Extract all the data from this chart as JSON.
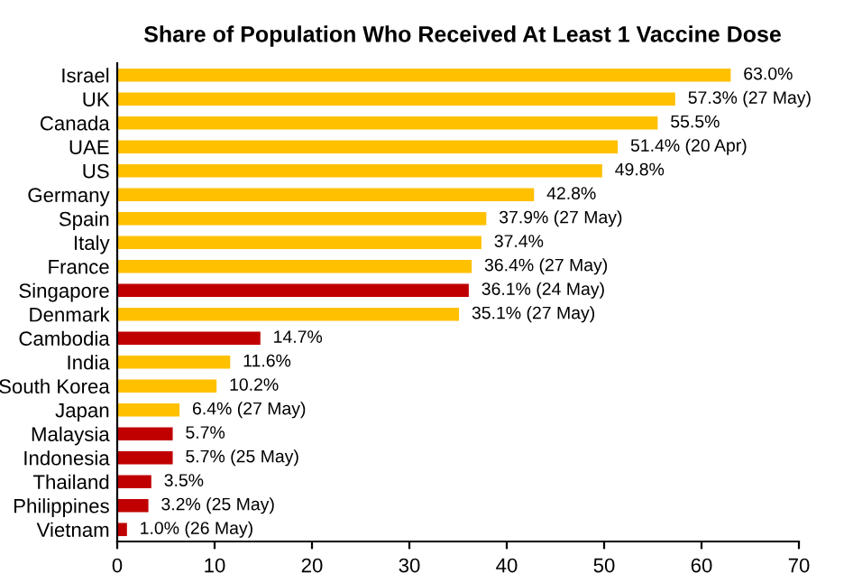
{
  "chart_data": {
    "type": "bar",
    "orientation": "horizontal",
    "title": "Share of Population Who Received At Least 1 Vaccine Dose",
    "categories": [
      "Israel",
      "UK",
      "Canada",
      "UAE",
      "US",
      "Germany",
      "Spain",
      "Italy",
      "France",
      "Singapore",
      "Denmark",
      "Cambodia",
      "India",
      "South Korea",
      "Japan",
      "Malaysia",
      "Indonesia",
      "Thailand",
      "Philippines",
      "Vietnam"
    ],
    "values": [
      63.0,
      57.3,
      55.5,
      51.4,
      49.8,
      42.8,
      37.9,
      37.4,
      36.4,
      36.1,
      35.1,
      14.7,
      11.6,
      10.2,
      6.4,
      5.7,
      5.7,
      3.5,
      3.2,
      1.0
    ],
    "value_labels": [
      "63.0%",
      "57.3% (27 May)",
      "55.5%",
      "51.4% (20 Apr)",
      "49.8%",
      "42.8%",
      "37.9% (27 May)",
      "37.4%",
      "36.4% (27 May)",
      "36.1% (24 May)",
      "35.1% (27 May)",
      "14.7%",
      "11.6%",
      "10.2%",
      "6.4% (27 May)",
      "5.7%",
      "5.7% (25 May)",
      "3.5%",
      "3.2% (25 May)",
      "1.0% (26 May)"
    ],
    "colors": [
      "#ffc000",
      "#ffc000",
      "#ffc000",
      "#ffc000",
      "#ffc000",
      "#ffc000",
      "#ffc000",
      "#ffc000",
      "#ffc000",
      "#c00000",
      "#ffc000",
      "#c00000",
      "#ffc000",
      "#ffc000",
      "#ffc000",
      "#c00000",
      "#c00000",
      "#c00000",
      "#c00000",
      "#c00000"
    ],
    "xlim": [
      0,
      70
    ],
    "xticks": [
      0,
      10,
      20,
      30,
      40,
      50,
      60,
      70
    ],
    "grid": false,
    "legend": false
  }
}
